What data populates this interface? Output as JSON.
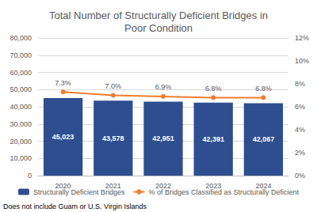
{
  "chart_data": {
    "type": "bar",
    "title": "Total Number of Structurally Deficient Bridges in\nPoor Condition",
    "annotation": "Does not include Guam or U.S. Virgin Islands",
    "categories": [
      "2020",
      "2021",
      "2022",
      "2023",
      "2024"
    ],
    "series": [
      {
        "name": "Structurally Deficient Bridges",
        "type": "bar",
        "color": "#2f4e8f",
        "values": [
          45023,
          43578,
          42951,
          42391,
          42067
        ],
        "value_labels": [
          "45,023",
          "43,578",
          "42,951",
          "42,391",
          "42,067"
        ]
      },
      {
        "name": "% of Bridges Classified as Structurally Deficient",
        "type": "line",
        "axis": "y2",
        "color": "#ed7d31",
        "marker": "circle",
        "values": [
          7.3,
          7.0,
          6.9,
          6.8,
          6.8
        ],
        "value_labels": [
          "7.3%",
          "7.0%",
          "6.9%",
          "6.8%",
          "6.8%"
        ]
      }
    ],
    "ylim": [
      0,
      80000
    ],
    "yticks": [
      0,
      {
        "value": 10000,
        "label": "10,000"
      },
      {
        "value": 20000,
        "label": "20,000"
      },
      {
        "value": 30000,
        "label": "30,000"
      },
      {
        "value": 40000,
        "label": "40,000"
      },
      {
        "value": 50000,
        "label": "50,000"
      },
      {
        "value": 60000,
        "label": "60,000"
      },
      {
        "value": 70000,
        "label": "70,000"
      },
      {
        "value": 80000,
        "label": "80,000"
      }
    ],
    "y2lim": [
      0,
      12
    ],
    "y2ticks": [
      {
        "value": 0,
        "label": "0%"
      },
      {
        "value": 2,
        "label": "2%"
      },
      {
        "value": 4,
        "label": "4%"
      },
      {
        "value": 6,
        "label": "6%"
      },
      {
        "value": 8,
        "label": "8%"
      },
      {
        "value": 10,
        "label": "10%"
      },
      {
        "value": 12,
        "label": "12%"
      }
    ],
    "grid": true,
    "legend": "bottom",
    "data_labels": true
  }
}
